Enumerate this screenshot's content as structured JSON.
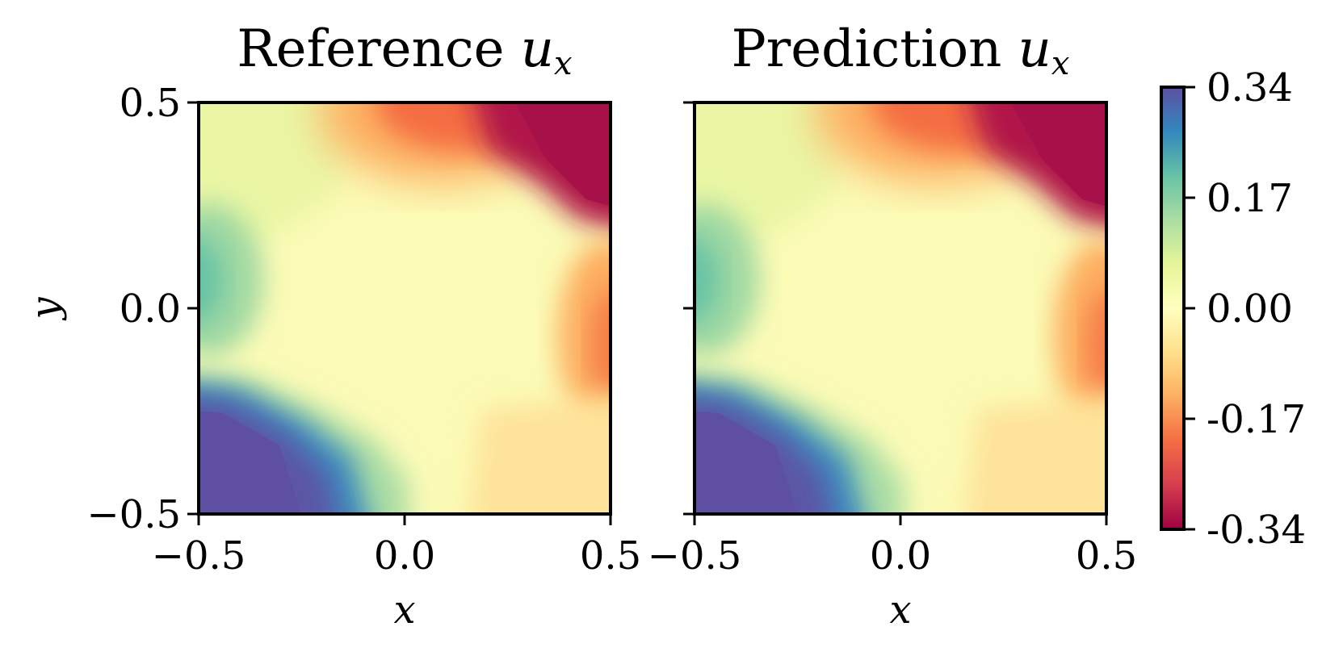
{
  "figure": {
    "colormap": "Spectral",
    "colormap_stops": [
      "#9e0142",
      "#d53e4f",
      "#f46d43",
      "#fdae61",
      "#fee08b",
      "#ffffbf",
      "#e6f598",
      "#abdda4",
      "#66c2a5",
      "#3288bd",
      "#5e4fa2"
    ]
  },
  "chart_data": [
    {
      "type": "heatmap",
      "title_main": "Reference ",
      "title_var": "u",
      "title_sub": "x",
      "xlabel": "x",
      "ylabel": "y",
      "xlim": [
        -0.5,
        0.5
      ],
      "ylim": [
        -0.5,
        0.5
      ],
      "xticks": [
        "−0.5",
        "0.0",
        "0.5"
      ],
      "yticks": [
        "−0.5",
        "0.0",
        "0.5"
      ],
      "value_range": [
        -0.34,
        0.34
      ]
    },
    {
      "type": "heatmap",
      "title_main": "Prediction ",
      "title_var": "u",
      "title_sub": "x",
      "xlabel": "x",
      "xlim": [
        -0.5,
        0.5
      ],
      "ylim": [
        -0.5,
        0.5
      ],
      "xticks": [
        "−0.5",
        "0.0",
        "0.5"
      ],
      "value_range": [
        -0.34,
        0.34
      ]
    }
  ],
  "colorbar": {
    "ticks": [
      "0.34",
      "0.17",
      "0.00",
      "-0.17",
      "-0.34"
    ]
  }
}
